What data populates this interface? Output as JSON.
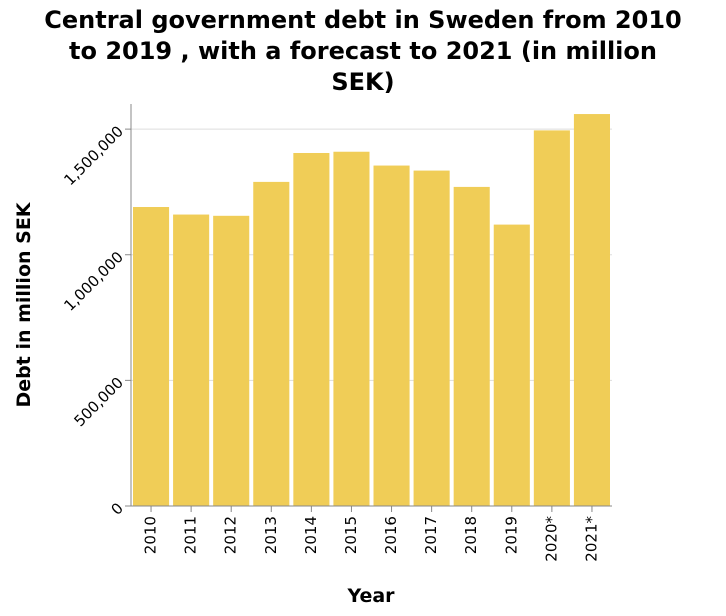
{
  "chart_data": {
    "type": "bar",
    "title": "Central government debt in Sweden from 2010 to 2019 , with a forecast to 2021 (in million SEK)",
    "title_lines": [
      "Central government debt in Sweden from 2010",
      "to 2019 , with a forecast to 2021 (in million",
      "SEK)"
    ],
    "xlabel": "Year",
    "ylabel": "Debt in million SEK",
    "categories": [
      "2010",
      "2011",
      "2012",
      "2013",
      "2014",
      "2015",
      "2016",
      "2017",
      "2018",
      "2019",
      "2020*",
      "2021*"
    ],
    "values": [
      1190000,
      1160000,
      1155000,
      1290000,
      1405000,
      1410000,
      1355000,
      1335000,
      1270000,
      1120000,
      1495000,
      1560000
    ],
    "ylim": [
      0,
      1600000
    ],
    "yticks": [
      0,
      500000,
      1000000,
      1500000
    ],
    "ytick_labels": [
      "0",
      "500,000",
      "1,000,000",
      "1,500,000"
    ],
    "bar_color": "#f0cd57",
    "grid": true
  }
}
